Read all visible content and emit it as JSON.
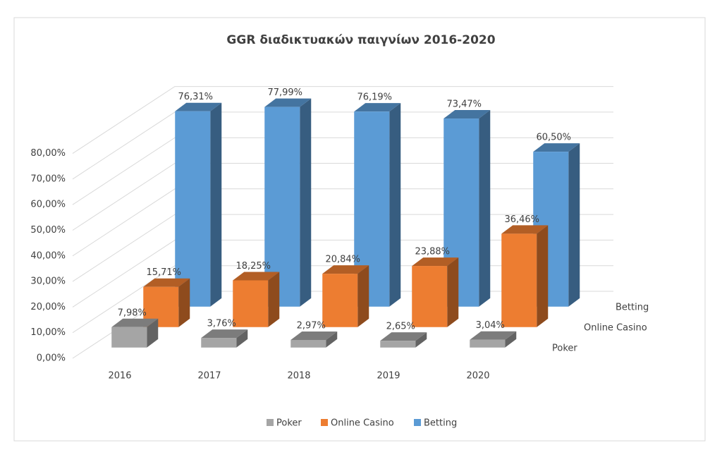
{
  "chart_data": {
    "type": "bar3d",
    "title": "GGR διαδικτυακών παιγνίων 2016-2020",
    "categories": [
      "2016",
      "2017",
      "2018",
      "2019",
      "2020"
    ],
    "series": [
      {
        "name": "Poker",
        "color": "#a5a5a5",
        "values": [
          7.98,
          3.76,
          2.97,
          2.65,
          3.04
        ],
        "value_labels": [
          "7,98%",
          "3,76%",
          "2,97%",
          "2,65%",
          "3,04%"
        ]
      },
      {
        "name": "Online Casino",
        "color": "#ed7d31",
        "values": [
          15.71,
          18.25,
          20.84,
          23.88,
          36.46
        ],
        "value_labels": [
          "15,71%",
          "18,25%",
          "20,84%",
          "23,88%",
          "36,46%"
        ]
      },
      {
        "name": "Betting",
        "color": "#5b9bd5",
        "values": [
          76.31,
          77.99,
          76.19,
          73.47,
          60.5
        ],
        "value_labels": [
          "76,31%",
          "77,99%",
          "76,19%",
          "73,47%",
          "60,50%"
        ]
      }
    ],
    "ylim": [
      0,
      80
    ],
    "yticks": [
      {
        "value": 0,
        "label": "0,00%"
      },
      {
        "value": 10,
        "label": "10,00%"
      },
      {
        "value": 20,
        "label": "20,00%"
      },
      {
        "value": 30,
        "label": "30,00%"
      },
      {
        "value": 40,
        "label": "40,00%"
      },
      {
        "value": 50,
        "label": "50,00%"
      },
      {
        "value": 60,
        "label": "60,00%"
      },
      {
        "value": 70,
        "label": "70,00%"
      },
      {
        "value": 80,
        "label": "80,00%"
      }
    ],
    "grid": true,
    "legend": "bottom"
  }
}
